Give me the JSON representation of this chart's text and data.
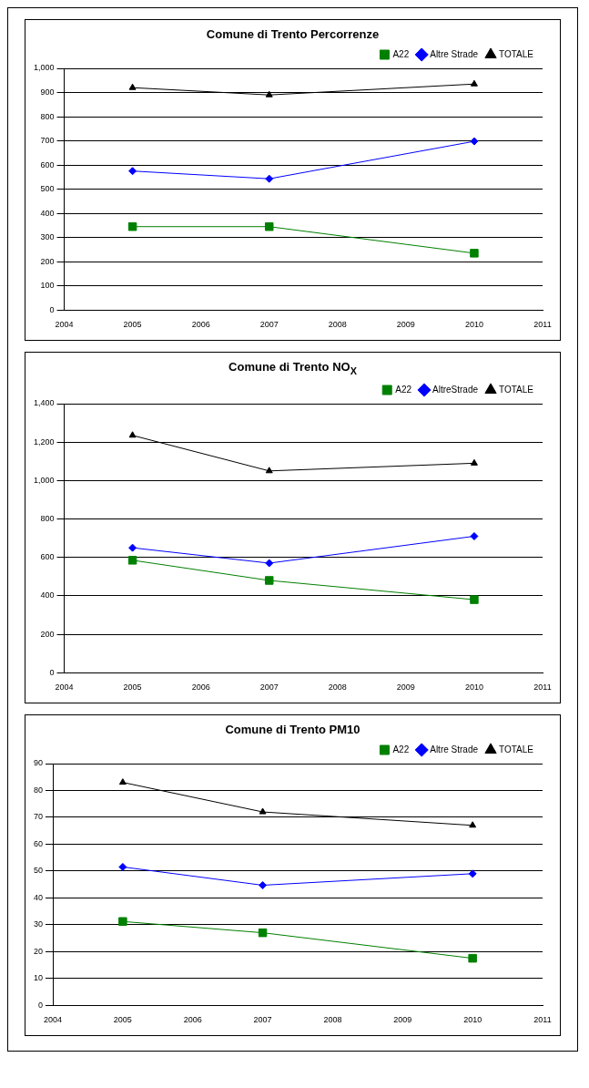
{
  "chart_data": [
    {
      "type": "line",
      "title": "Comune di Trento Percorrenze",
      "x": [
        2005,
        2007,
        2010
      ],
      "xlim": [
        2004,
        2011
      ],
      "xticks": [
        2004,
        2005,
        2006,
        2007,
        2008,
        2009,
        2010,
        2011
      ],
      "ylim": [
        0,
        1000
      ],
      "yticks": [
        0,
        100,
        200,
        300,
        400,
        500,
        600,
        700,
        800,
        900,
        {
          "value": 1000,
          "label": "1,000"
        }
      ],
      "grid": "y",
      "legend": "top right",
      "series": [
        {
          "name": "A22",
          "color": "#008000",
          "marker": "square",
          "values": [
            345,
            345,
            235
          ]
        },
        {
          "name": "Altre Strade",
          "color": "#0000ff",
          "marker": "diamond",
          "values": [
            575,
            543,
            698
          ]
        },
        {
          "name": "TOTALE",
          "color": "#000000",
          "marker": "triangle",
          "values": [
            920,
            890,
            935
          ]
        }
      ]
    },
    {
      "type": "line",
      "title": "Comune di Trento NO$_{X}$",
      "x": [
        2005,
        2007,
        2010
      ],
      "xlim": [
        2004,
        2011
      ],
      "xticks": [
        2004,
        2005,
        2006,
        2007,
        2008,
        2009,
        2010,
        2011
      ],
      "ylim": [
        0,
        1400
      ],
      "yticks": [
        0,
        200,
        400,
        600,
        800,
        {
          "value": 1000,
          "label": "1,000"
        },
        {
          "value": 1200,
          "label": "1,200"
        },
        {
          "value": 1400,
          "label": "1,400"
        }
      ],
      "grid": "y",
      "legend": "top right",
      "series": [
        {
          "name": "A22",
          "color": "#008000",
          "marker": "square",
          "values": [
            585,
            480,
            380
          ]
        },
        {
          "name": "AltreStrade",
          "color": "#0000ff",
          "marker": "diamond",
          "values": [
            650,
            570,
            710
          ]
        },
        {
          "name": "TOTALE",
          "color": "#000000",
          "marker": "triangle",
          "values": [
            1235,
            1050,
            1090
          ]
        }
      ]
    },
    {
      "type": "line",
      "title": "Comune di Trento PM10",
      "x": [
        2005,
        2007,
        2010
      ],
      "xlim": [
        2004,
        2011
      ],
      "xticks": [
        2004,
        2005,
        2006,
        2007,
        2008,
        2009,
        2010,
        2011
      ],
      "ylim": [
        0,
        90
      ],
      "yticks": [
        0,
        10,
        20,
        30,
        40,
        50,
        60,
        70,
        80,
        90
      ],
      "grid": "y",
      "legend": "top right",
      "series": [
        {
          "name": "A22",
          "color": "#008000",
          "marker": "square",
          "values": [
            31.2,
            27,
            17.5
          ]
        },
        {
          "name": "Altre Strade",
          "color": "#0000ff",
          "marker": "diamond",
          "values": [
            51.5,
            44.7,
            49
          ]
        },
        {
          "name": "TOTALE",
          "color": "#000000",
          "marker": "triangle",
          "values": [
            83,
            72,
            67
          ]
        }
      ]
    }
  ]
}
